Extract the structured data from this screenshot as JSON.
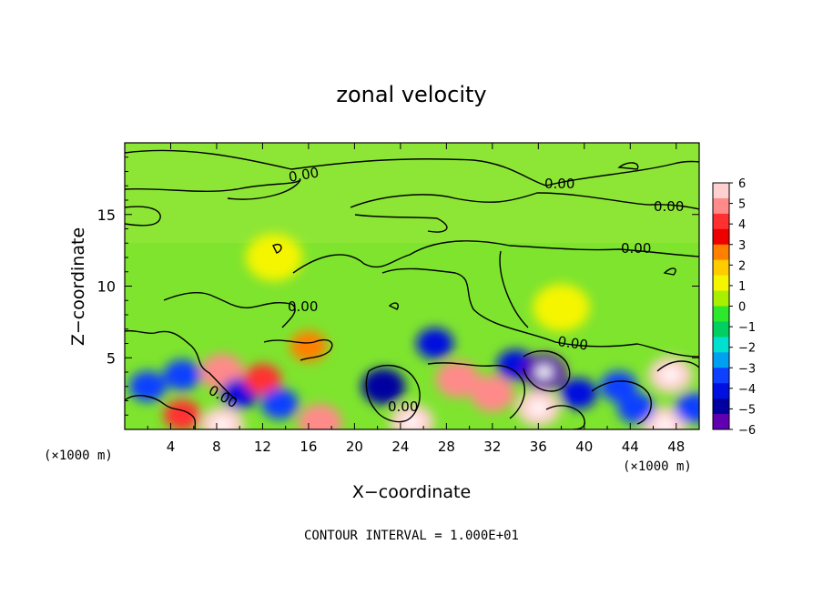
{
  "chart_data": {
    "type": "heatmap",
    "title": "zonal velocity",
    "xlabel": "X−coordinate",
    "ylabel": "Z−coordinate",
    "x_unit_left": "(×1000 m)",
    "x_unit_right": "(×1000 m)",
    "footer": "CONTOUR INTERVAL = 1.000E+01",
    "xlim": [
      0,
      50
    ],
    "ylim": [
      0,
      20
    ],
    "x_ticks": [
      4,
      8,
      12,
      16,
      20,
      24,
      28,
      32,
      36,
      40,
      44,
      48
    ],
    "x_tick_labels": [
      "4",
      "8",
      "12",
      "16",
      "20",
      "24",
      "28",
      "32",
      "36",
      "40",
      "44",
      "48"
    ],
    "y_ticks": [
      5,
      10,
      15
    ],
    "y_tick_labels": [
      "5",
      "10",
      "15"
    ],
    "colorbar": {
      "range": [
        -6,
        6
      ],
      "tick_labels": [
        "6",
        "5",
        "4",
        "3",
        "2",
        "1",
        "0",
        "−1",
        "−2",
        "−3",
        "−4",
        "−5",
        "−6"
      ],
      "colors": [
        "#ffd0d0",
        "#ff8a8a",
        "#ff3030",
        "#ee0000",
        "#ff8000",
        "#ffcc00",
        "#f5f500",
        "#a8f000",
        "#2ee82e",
        "#00d060",
        "#00e0d0",
        "#00a0f0",
        "#1040ff",
        "#0010e0",
        "#0000a0",
        "#6000b0"
      ]
    },
    "contour_labels": [
      "0.00",
      "0.00",
      "0.00",
      "0.00",
      "0.00",
      "0.00",
      "0.00",
      "0.00"
    ],
    "anomalies": [
      {
        "name": "negative-cell",
        "x": 2.0,
        "z": 3.0,
        "value": -3
      },
      {
        "name": "negative-cell",
        "x": 5.0,
        "z": 3.8,
        "value": -3
      },
      {
        "name": "positive-cell",
        "x": 8.5,
        "z": 4.0,
        "value": 5
      },
      {
        "name": "negative-cell",
        "x": 10.0,
        "z": 2.5,
        "value": -4
      },
      {
        "name": "positive-cell",
        "x": 12.0,
        "z": 3.5,
        "value": 4
      },
      {
        "name": "negative-cell",
        "x": 13.5,
        "z": 1.8,
        "value": -3
      },
      {
        "name": "positive-cell",
        "x": 5.0,
        "z": 1.0,
        "value": 4
      },
      {
        "name": "positive-cell",
        "x": 8.5,
        "z": 0.3,
        "value": 6
      },
      {
        "name": "positive-cell",
        "x": 17.0,
        "z": 0.5,
        "value": 5
      },
      {
        "name": "negative-cell",
        "x": 22.5,
        "z": 3.0,
        "value": -5
      },
      {
        "name": "negative-cell",
        "x": 27.0,
        "z": 6.0,
        "value": -4
      },
      {
        "name": "positive-cell",
        "x": 25.0,
        "z": 0.5,
        "value": 6
      },
      {
        "name": "positive-cell",
        "x": 29.0,
        "z": 3.5,
        "value": 5
      },
      {
        "name": "positive-cell",
        "x": 32.0,
        "z": 2.5,
        "value": 5
      },
      {
        "name": "negative-cell",
        "x": 34.0,
        "z": 4.5,
        "value": -4
      },
      {
        "name": "negative-cell",
        "x": 36.5,
        "z": 4.0,
        "value": -6
      },
      {
        "name": "positive-cell",
        "x": 36.0,
        "z": 1.5,
        "value": 6
      },
      {
        "name": "negative-cell",
        "x": 39.5,
        "z": 2.5,
        "value": -4
      },
      {
        "name": "negative-cell",
        "x": 43.0,
        "z": 3.0,
        "value": -3
      },
      {
        "name": "positive-cell",
        "x": 47.5,
        "z": 3.8,
        "value": 6
      },
      {
        "name": "positive-cell",
        "x": 47.0,
        "z": 0.3,
        "value": 6
      },
      {
        "name": "negative-cell",
        "x": 44.5,
        "z": 1.5,
        "value": -3
      },
      {
        "name": "negative-cell",
        "x": 49.5,
        "z": 1.5,
        "value": -3
      },
      {
        "name": "positive-cell",
        "x": 38.0,
        "z": 8.5,
        "value": 1
      },
      {
        "name": "positive-cell",
        "x": 13.0,
        "z": 12.0,
        "value": 1
      },
      {
        "name": "positive-cell",
        "x": 16.0,
        "z": 5.8,
        "value": 3
      }
    ]
  }
}
